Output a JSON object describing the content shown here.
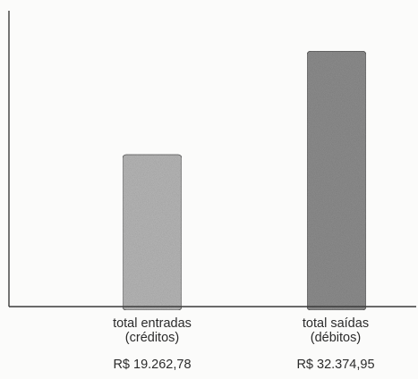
{
  "chart_data": {
    "type": "bar",
    "categories": [
      {
        "line1": "total entradas",
        "line2": "(créditos)",
        "value_label": "R$ 19.262,78"
      },
      {
        "line1": "total saídas",
        "line2": "(débitos)",
        "value_label": "R$ 32.374,95"
      }
    ],
    "values": [
      19262.78,
      32374.95
    ],
    "title": "",
    "xlabel": "",
    "ylabel": "",
    "ylim": [
      0,
      37500
    ],
    "grid": false,
    "legend": "none"
  },
  "colors": {
    "bar_fill_1": "#b8b8b8",
    "bar_fill_2": "#8e8e8e",
    "axis": "#3a3a3a",
    "background": "#fbfbfa"
  }
}
